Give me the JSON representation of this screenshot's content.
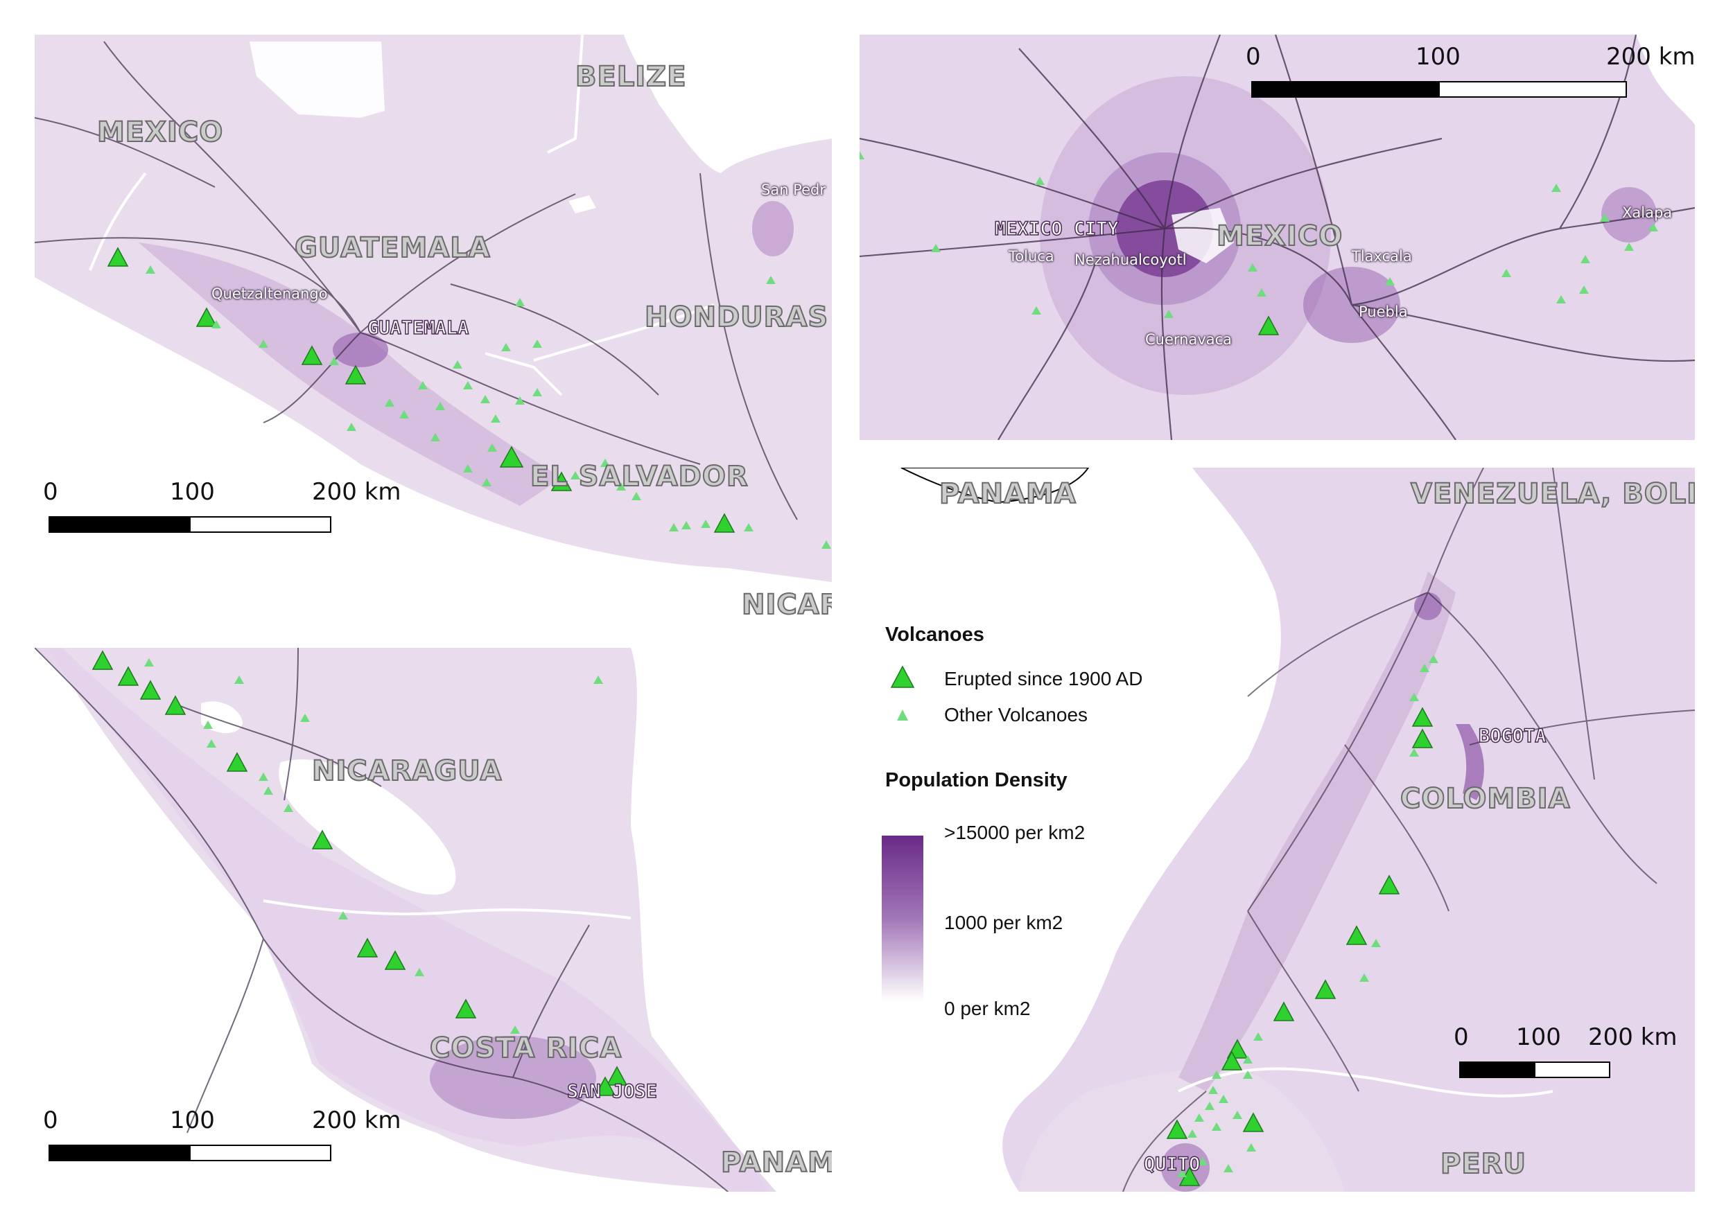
{
  "colors": {
    "land_low": "#e9dced",
    "land_mid": "#cdb2d8",
    "land_high": "#6a2b87",
    "sea": "#ffffff",
    "border": "#ffffff",
    "road": "#3b2a45",
    "volcano": "#2fd12f",
    "volcano_stroke": "#1c7a1c"
  },
  "panels": {
    "guatemala": {
      "countries": [
        "MEXICO",
        "BELIZE",
        "GUATEMALA",
        "HONDURAS",
        "EL SALVADOR",
        "NICAR"
      ],
      "cities": [
        "GUATEMALA"
      ],
      "towns": [
        "Quetzaltenango",
        "San Pedr"
      ],
      "scale": {
        "zero": "0",
        "mid": "100",
        "end": "200 km"
      }
    },
    "mexico": {
      "countries": [
        "MEXICO"
      ],
      "cities": [
        "MEXICO CITY"
      ],
      "towns": [
        "Toluca",
        "Nezahualcoyotl",
        "Cuernavaca",
        "Tlaxcala",
        "Puebla",
        "Xalapa"
      ],
      "scale": {
        "zero": "0",
        "mid": "100",
        "end": "200 km"
      }
    },
    "nicaragua": {
      "countries": [
        "NICARAGUA",
        "COSTA RICA",
        "PANAMA"
      ],
      "cities": [
        "SAN JOSE"
      ],
      "scale": {
        "zero": "0",
        "mid": "100",
        "end": "200 km"
      }
    },
    "colombia": {
      "countries": [
        "PANAMA",
        "VENEZUELA, BOLIVA",
        "COLOMBIA",
        "PERU"
      ],
      "cities": [
        "BOGOTA",
        "QUITO"
      ],
      "scale": {
        "zero": "0",
        "mid": "100",
        "end": "200 km"
      }
    }
  },
  "legend": {
    "volcanoes_title": "Volcanoes",
    "erupted": "Erupted since 1900 AD",
    "other": "Other Volcanoes",
    "density_title": "Population Density",
    "high": ">15000 per km2",
    "mid": "1000 per km2",
    "low": "0 per km2"
  }
}
